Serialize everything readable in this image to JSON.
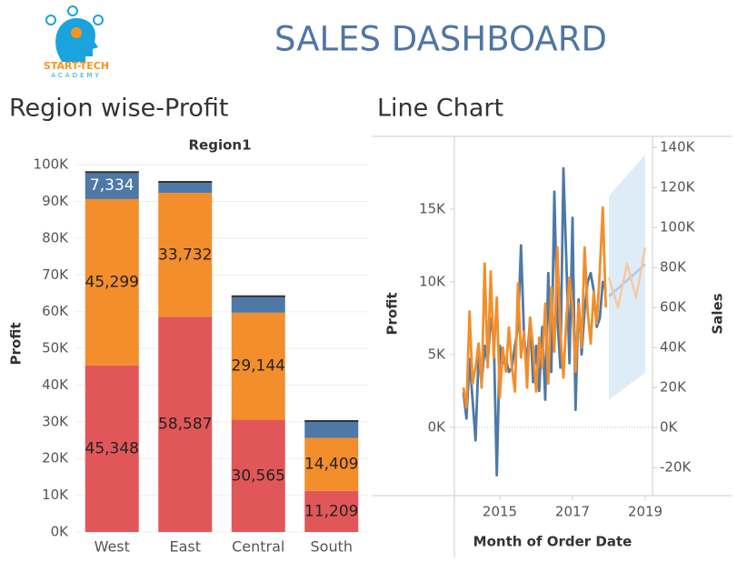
{
  "header": {
    "title": "SALES DASHBOARD",
    "logo_text": "START-TECH",
    "logo_subtext": "ACADEMY"
  },
  "chart_data": [
    {
      "type": "bar",
      "title": "Region wise-Profit",
      "header": "Region1",
      "y_label": "Profit",
      "stacked": true,
      "categories": [
        "West",
        "East",
        "Central",
        "South"
      ],
      "series": [
        {
          "color": "#e15759",
          "values": [
            45348,
            58587,
            30565,
            11209
          ],
          "value_labels": [
            "45,348",
            "58,587",
            "30,565",
            "11,209"
          ]
        },
        {
          "color": "#f28e2b",
          "values": [
            45299,
            33732,
            29144,
            14409
          ],
          "value_labels": [
            "45,299",
            "33,732",
            "29,144",
            "14,409"
          ]
        },
        {
          "color": "#4e79a7",
          "values": [
            7334,
            3000,
            4500,
            4600
          ],
          "value_labels": [
            "7,334",
            null,
            null,
            null
          ]
        }
      ],
      "ylim": [
        0,
        104000
      ],
      "yticks": [
        {
          "value": 0,
          "label": "0K"
        },
        {
          "value": 10000,
          "label": "10K"
        },
        {
          "value": 20000,
          "label": "20K"
        },
        {
          "value": 30000,
          "label": "30K"
        },
        {
          "value": 40000,
          "label": "40K"
        },
        {
          "value": 50000,
          "label": "50K"
        },
        {
          "value": 60000,
          "label": "60K"
        },
        {
          "value": 70000,
          "label": "70K"
        },
        {
          "value": 80000,
          "label": "80K"
        },
        {
          "value": 90000,
          "label": "90K"
        },
        {
          "value": 100000,
          "label": "100K"
        }
      ],
      "grid": true
    },
    {
      "type": "line",
      "title": "Line Chart",
      "x_label": "Month of Order Date",
      "y_label": "Profit",
      "y2_label": "Sales",
      "zero_line": true,
      "x": [
        2014.0,
        2014.083,
        2014.167,
        2014.25,
        2014.333,
        2014.417,
        2014.5,
        2014.583,
        2014.667,
        2014.75,
        2014.833,
        2014.917,
        2015.0,
        2015.083,
        2015.167,
        2015.25,
        2015.333,
        2015.417,
        2015.5,
        2015.583,
        2015.667,
        2015.75,
        2015.833,
        2015.917,
        2016.0,
        2016.083,
        2016.167,
        2016.25,
        2016.333,
        2016.417,
        2016.5,
        2016.583,
        2016.667,
        2016.75,
        2016.833,
        2016.917,
        2017.0,
        2017.083,
        2017.167,
        2017.25,
        2017.333,
        2017.417,
        2017.5,
        2017.583,
        2017.667,
        2017.75,
        2017.833,
        2017.917
      ],
      "series": [
        {
          "color": "#4e79a7",
          "values": [
            2400,
            600,
            4700,
            1900,
            -900,
            5000,
            3100,
            5600,
            4400,
            7500,
            6200,
            -3300,
            5600,
            4400,
            4700,
            3800,
            4100,
            5600,
            6900,
            12500,
            6200,
            4400,
            7500,
            3100,
            5600,
            2500,
            6900,
            1900,
            10600,
            3800,
            16200,
            7500,
            4100,
            17800,
            11200,
            4400,
            14400,
            1200,
            8800,
            5000,
            8100,
            10000,
            10600,
            9400,
            6900,
            7500,
            10000,
            9400
          ]
        },
        {
          "color": "#f28e2b",
          "axis": "y2",
          "values": [
            20000,
            10000,
            58000,
            22000,
            30000,
            42000,
            20000,
            82000,
            30000,
            78000,
            35000,
            65000,
            15000,
            40000,
            28000,
            50000,
            30000,
            18000,
            72000,
            35000,
            48000,
            20000,
            55000,
            40000,
            18000,
            45000,
            30000,
            62000,
            22000,
            70000,
            38000,
            90000,
            48000,
            25000,
            55000,
            75000,
            60000,
            28000,
            62000,
            40000,
            90000,
            58000,
            42000,
            68000,
            52000,
            78000,
            110000,
            60000
          ]
        }
      ],
      "forecast_series": [
        {
          "color": "#a9cbe8",
          "x": [
            2018.0,
            2019.0
          ],
          "values": [
            9000,
            11200
          ]
        },
        {
          "color": "#f7c9a0",
          "axis": "y2",
          "x": [
            2018.0,
            2018.25,
            2018.5,
            2018.75,
            2019.0
          ],
          "values": [
            75000,
            60000,
            82000,
            65000,
            90000
          ]
        }
      ],
      "forecast_band": {
        "color": "#d6e7f5",
        "x": [
          2018.0,
          2019.0
        ],
        "lower": [
          1900,
          3750
        ],
        "upper": [
          15900,
          18750
        ]
      },
      "xlim": [
        2013.75,
        2019.2
      ],
      "xticks": [
        2015,
        2017,
        2019
      ],
      "ylim": [
        -4700,
        20000
      ],
      "yticks": [
        {
          "value": 0,
          "label": "0K"
        },
        {
          "value": 5000,
          "label": "5K"
        },
        {
          "value": 10000,
          "label": "10K"
        },
        {
          "value": 15000,
          "label": "15K"
        }
      ],
      "y2lim": [
        -34000,
        145500
      ],
      "y2ticks": [
        {
          "value": -20000,
          "label": "-20K"
        },
        {
          "value": 0,
          "label": "0K"
        },
        {
          "value": 20000,
          "label": "20K"
        },
        {
          "value": 40000,
          "label": "40K"
        },
        {
          "value": 60000,
          "label": "60K"
        },
        {
          "value": 80000,
          "label": "80K"
        },
        {
          "value": 100000,
          "label": "100K"
        },
        {
          "value": 120000,
          "label": "120K"
        },
        {
          "value": 140000,
          "label": "140K"
        }
      ]
    }
  ]
}
